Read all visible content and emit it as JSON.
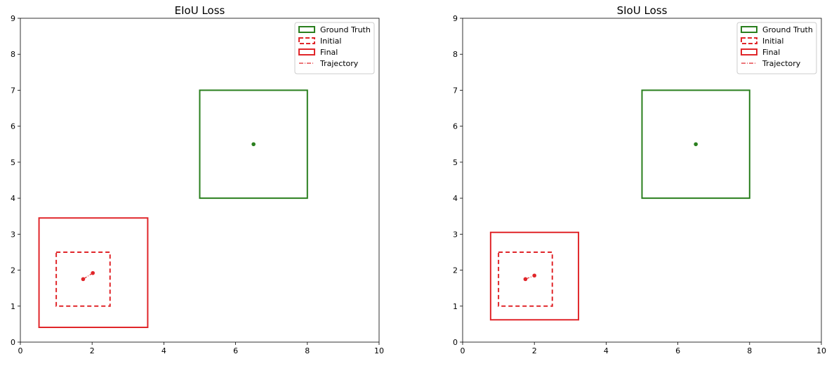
{
  "chart_data": [
    {
      "type": "box-trajectory",
      "title": "EIoU Loss",
      "xlim": [
        0,
        10
      ],
      "ylim": [
        0,
        9
      ],
      "xticks": [
        0,
        2,
        4,
        6,
        8,
        10
      ],
      "yticks": [
        0,
        1,
        2,
        3,
        4,
        5,
        6,
        7,
        8,
        9
      ],
      "grid": false,
      "legend_position": "top-right",
      "legend": [
        "Ground Truth",
        "Initial",
        "Final",
        "Trajectory"
      ],
      "ground_truth": {
        "x1": 5.0,
        "y1": 4.0,
        "x2": 8.0,
        "y2": 7.0,
        "center": [
          6.5,
          5.5
        ]
      },
      "initial": {
        "x1": 1.0,
        "y1": 1.0,
        "x2": 2.5,
        "y2": 2.5
      },
      "final": {
        "x1": 0.52,
        "y1": 0.41,
        "x2": 3.55,
        "y2": 3.45
      },
      "trajectory": [
        [
          1.75,
          1.75
        ],
        [
          2.02,
          1.92
        ]
      ]
    },
    {
      "type": "box-trajectory",
      "title": "SIoU Loss",
      "xlim": [
        0,
        10
      ],
      "ylim": [
        0,
        9
      ],
      "xticks": [
        0,
        2,
        4,
        6,
        8,
        10
      ],
      "yticks": [
        0,
        1,
        2,
        3,
        4,
        5,
        6,
        7,
        8,
        9
      ],
      "grid": false,
      "legend_position": "top-right",
      "legend": [
        "Ground Truth",
        "Initial",
        "Final",
        "Trajectory"
      ],
      "ground_truth": {
        "x1": 5.0,
        "y1": 4.0,
        "x2": 8.0,
        "y2": 7.0,
        "center": [
          6.5,
          5.5
        ]
      },
      "initial": {
        "x1": 1.0,
        "y1": 1.0,
        "x2": 2.5,
        "y2": 2.5
      },
      "final": {
        "x1": 0.78,
        "y1": 0.62,
        "x2": 3.23,
        "y2": 3.05
      },
      "trajectory": [
        [
          1.75,
          1.75
        ],
        [
          2.0,
          1.85
        ]
      ]
    }
  ],
  "colors": {
    "ground_truth": "#2a7f1e",
    "predicted": "#e0262a",
    "axis": "#000000"
  }
}
